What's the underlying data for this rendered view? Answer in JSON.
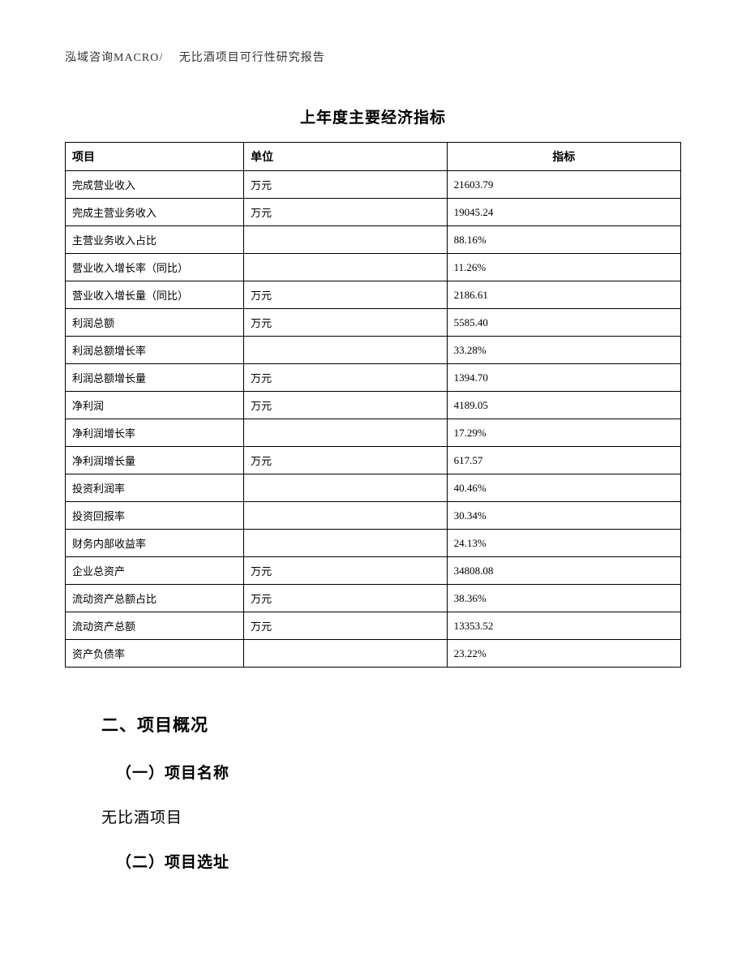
{
  "header": {
    "text": "泓域咨询MACRO/　 无比酒项目可行性研究报告"
  },
  "table": {
    "title": "上年度主要经济指标",
    "columns": {
      "item": "项目",
      "unit": "单位",
      "value": "指标"
    },
    "rows": [
      {
        "item": "完成营业收入",
        "unit": "万元",
        "value": "21603.79"
      },
      {
        "item": "完成主营业务收入",
        "unit": "万元",
        "value": "19045.24"
      },
      {
        "item": "主营业务收入占比",
        "unit": "",
        "value": "88.16%"
      },
      {
        "item": "营业收入增长率（同比）",
        "unit": "",
        "value": "11.26%"
      },
      {
        "item": "营业收入增长量（同比）",
        "unit": "万元",
        "value": "2186.61"
      },
      {
        "item": "利润总额",
        "unit": "万元",
        "value": "5585.40"
      },
      {
        "item": "利润总额增长率",
        "unit": "",
        "value": "33.28%"
      },
      {
        "item": "利润总额增长量",
        "unit": "万元",
        "value": "1394.70"
      },
      {
        "item": "净利润",
        "unit": "万元",
        "value": "4189.05"
      },
      {
        "item": "净利润增长率",
        "unit": "",
        "value": "17.29%"
      },
      {
        "item": "净利润增长量",
        "unit": "万元",
        "value": "617.57"
      },
      {
        "item": "投资利润率",
        "unit": "",
        "value": "40.46%"
      },
      {
        "item": "投资回报率",
        "unit": "",
        "value": "30.34%"
      },
      {
        "item": "财务内部收益率",
        "unit": "",
        "value": "24.13%"
      },
      {
        "item": "企业总资产",
        "unit": "万元",
        "value": "34808.08"
      },
      {
        "item": "流动资产总额占比",
        "unit": "万元",
        "value": "38.36%"
      },
      {
        "item": "流动资产总额",
        "unit": "万元",
        "value": "13353.52"
      },
      {
        "item": "资产负债率",
        "unit": "",
        "value": "23.22%"
      }
    ]
  },
  "sections": {
    "h1": "二、项目概况",
    "sub1": "（一）项目名称",
    "text1": "无比酒项目",
    "sub2": "（二）项目选址"
  }
}
